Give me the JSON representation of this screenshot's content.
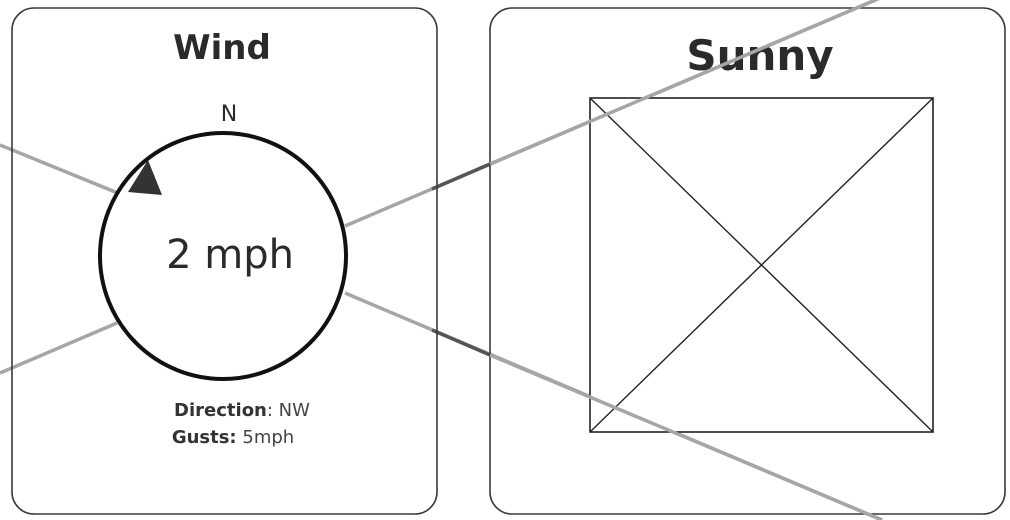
{
  "wind_panel": {
    "title": "Wind",
    "compass_north": "N",
    "speed": "2 mph",
    "direction_label": "Direction",
    "direction_value": ": NW",
    "gusts_label": "Gusts:",
    "gusts_value": " 5mph"
  },
  "weather_panel": {
    "title": "Sunny",
    "image_placeholder": "image-placeholder"
  },
  "colors": {
    "border": "#3a3a3a",
    "text": "#2a2a2a",
    "connector": "#a6a6a6",
    "connector_dark": "#555555"
  }
}
